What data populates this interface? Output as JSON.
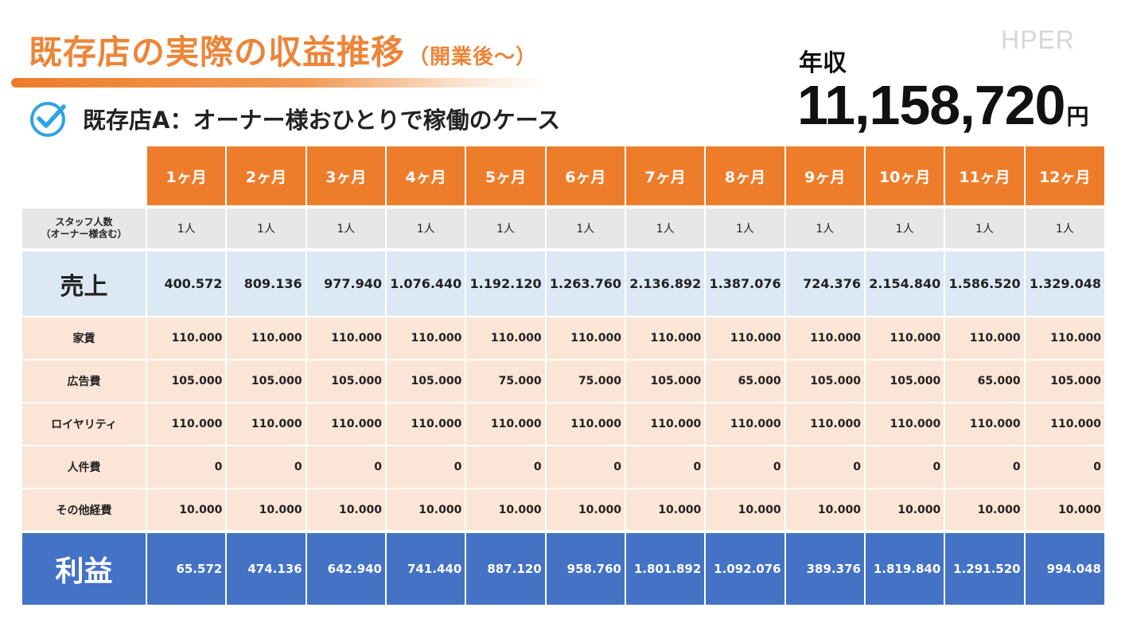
{
  "title": {
    "main": "既存店の実際の収益推移",
    "sub": "（開業後～）"
  },
  "brand": "HPER",
  "subheading": {
    "icon": "check-circle-icon",
    "text": "既存店A：オーナー様おひとりで稼働のケース"
  },
  "annual": {
    "label": "年収",
    "value": "11,158,720",
    "unit": "円"
  },
  "colors": {
    "accent_orange": "#ee7d2b",
    "sales_row": "#dce9f5",
    "cost_rows": "#fbe5d6",
    "staff_row": "#e7e7e7",
    "profit_row": "#4472c4",
    "check_icon": "#2fa3e0"
  },
  "table": {
    "months": [
      "1ヶ月",
      "2ヶ月",
      "3ヶ月",
      "4ヶ月",
      "5ヶ月",
      "6ヶ月",
      "7ヶ月",
      "8ヶ月",
      "9ヶ月",
      "10ヶ月",
      "11ヶ月",
      "12ヶ月"
    ],
    "staff": {
      "label_line1": "スタッフ人数",
      "label_line2": "（オーナー様含む）",
      "values": [
        "1人",
        "1人",
        "1人",
        "1人",
        "1人",
        "1人",
        "1人",
        "1人",
        "1人",
        "1人",
        "1人",
        "1人"
      ]
    },
    "sales": {
      "label": "売上",
      "values": [
        "400.572",
        "809.136",
        "977.940",
        "1.076.440",
        "1.192.120",
        "1.263.760",
        "2.136.892",
        "1.387.076",
        "724.376",
        "2.154.840",
        "1.586.520",
        "1.329.048"
      ]
    },
    "costs": [
      {
        "label": "家賃",
        "values": [
          "110.000",
          "110.000",
          "110.000",
          "110.000",
          "110.000",
          "110.000",
          "110.000",
          "110.000",
          "110.000",
          "110.000",
          "110.000",
          "110.000"
        ]
      },
      {
        "label": "広告費",
        "values": [
          "105.000",
          "105.000",
          "105.000",
          "105.000",
          "75.000",
          "75.000",
          "105.000",
          "65.000",
          "105.000",
          "105.000",
          "65.000",
          "105.000"
        ]
      },
      {
        "label": "ロイヤリティ",
        "values": [
          "110.000",
          "110.000",
          "110.000",
          "110.000",
          "110.000",
          "110.000",
          "110.000",
          "110.000",
          "110.000",
          "110.000",
          "110.000",
          "110.000"
        ]
      },
      {
        "label": "人件費",
        "values": [
          "0",
          "0",
          "0",
          "0",
          "0",
          "0",
          "0",
          "0",
          "0",
          "0",
          "0",
          "0"
        ]
      },
      {
        "label": "その他経費",
        "values": [
          "10.000",
          "10.000",
          "10.000",
          "10.000",
          "10.000",
          "10.000",
          "10.000",
          "10.000",
          "10.000",
          "10.000",
          "10.000",
          "10.000"
        ]
      }
    ],
    "profit": {
      "label": "利益",
      "values": [
        "65.572",
        "474.136",
        "642.940",
        "741.440",
        "887.120",
        "958.760",
        "1.801.892",
        "1.092.076",
        "389.376",
        "1.819.840",
        "1.291.520",
        "994.048"
      ]
    }
  }
}
